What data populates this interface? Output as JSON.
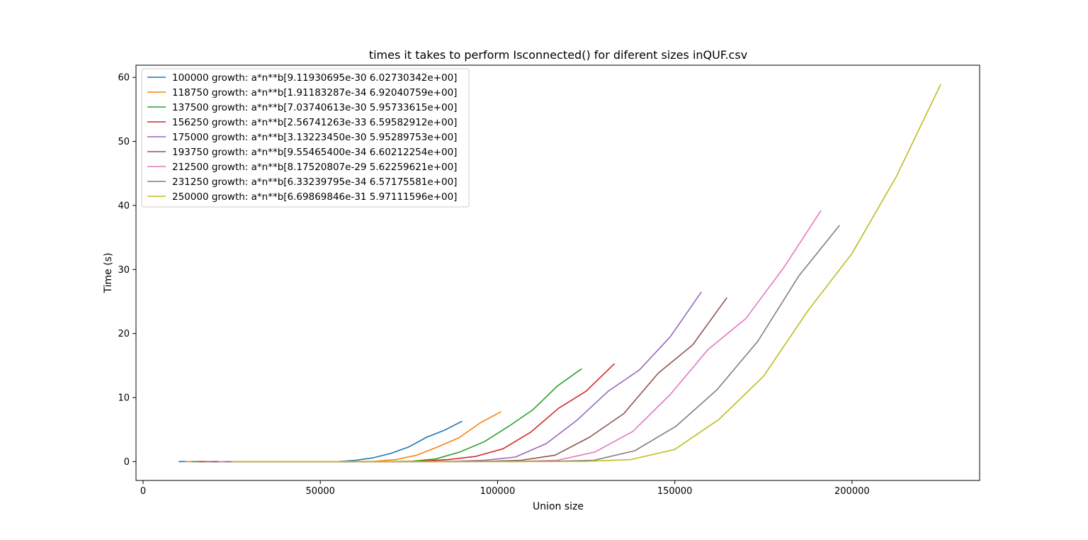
{
  "chart_data": {
    "type": "line",
    "title": "times it takes to perform Isconnected() for diferent sizes inQUF.csv",
    "xlabel": "Union size",
    "ylabel": "Time  (s)",
    "xlim": [
      -2000,
      236000
    ],
    "ylim": [
      -2.95,
      61.9
    ],
    "xticks": [
      0,
      50000,
      100000,
      150000,
      200000
    ],
    "yticks": [
      0,
      10,
      20,
      30,
      40,
      50,
      60
    ],
    "legend_position": "upper left",
    "grid": false,
    "series": [
      {
        "name": "100000 growth: a*n**b[9.11930695e-30 6.02730342e+00]",
        "color": "#1f77b4",
        "x": [
          10000,
          15000,
          20000,
          25000,
          30000,
          35000,
          40000,
          45000,
          50000,
          55000,
          60000,
          65000,
          70000,
          75000,
          80000,
          85000,
          90000
        ],
        "y": [
          0,
          0,
          0,
          0,
          0,
          0,
          0,
          0,
          0,
          0,
          0.2,
          0.6,
          1.3,
          2.3,
          3.8,
          4.9,
          6.3
        ]
      },
      {
        "name": "118750 growth: a*n**b[1.91183287e-34 6.92040759e+00]",
        "color": "#ff7f0e",
        "x": [
          11875,
          17812,
          23750,
          29687,
          35625,
          41562,
          47500,
          53437,
          59375,
          65312,
          71250,
          77187,
          83125,
          89062,
          95000,
          101000
        ],
        "y": [
          0,
          0,
          0,
          0,
          0,
          0,
          0,
          0,
          0,
          0.05,
          0.3,
          1.0,
          2.3,
          3.7,
          6.0,
          7.8
        ]
      },
      {
        "name": "137500 growth: a*n**b[7.03740613e-30 5.95733615e+00]",
        "color": "#2ca02c",
        "x": [
          13750,
          20625,
          27500,
          34375,
          41250,
          48125,
          55000,
          61875,
          68750,
          75625,
          82500,
          89375,
          96250,
          103125,
          110000,
          116875,
          123750
        ],
        "y": [
          0,
          0,
          0,
          0,
          0,
          0,
          0,
          0,
          0,
          0.05,
          0.4,
          1.5,
          3.1,
          5.5,
          8.1,
          11.8,
          14.5
        ]
      },
      {
        "name": "156250 growth: a*n**b[2.56741263e-33 6.59582912e+00]",
        "color": "#d62728",
        "x": [
          15625,
          23437,
          31250,
          39062,
          46875,
          54687,
          62500,
          70312,
          78125,
          85937,
          93750,
          101562,
          109375,
          117187,
          125000,
          133000
        ],
        "y": [
          0,
          0,
          0,
          0,
          0,
          0,
          0,
          0,
          0.05,
          0.3,
          0.8,
          2.0,
          4.6,
          8.3,
          11.0,
          15.3
        ]
      },
      {
        "name": "175000 growth: a*n**b[3.13223450e-30 5.95289753e+00]",
        "color": "#9467bd",
        "x": [
          17500,
          26250,
          35000,
          43750,
          52500,
          61250,
          70000,
          78750,
          87500,
          96250,
          105000,
          113750,
          122500,
          131250,
          140000,
          148750,
          157500
        ],
        "y": [
          0,
          0,
          0,
          0,
          0,
          0,
          0,
          0,
          0.05,
          0.2,
          0.7,
          2.8,
          6.5,
          11.0,
          14.3,
          19.5,
          26.5
        ]
      },
      {
        "name": "193750 growth: a*n**b[9.55465400e-34 6.60212254e+00]",
        "color": "#8c564b",
        "x": [
          19375,
          29062,
          38750,
          48437,
          58125,
          67812,
          77500,
          87187,
          96875,
          106562,
          116250,
          125937,
          135625,
          145312,
          155000,
          164700
        ],
        "y": [
          0,
          0,
          0,
          0,
          0,
          0,
          0,
          0,
          0.05,
          0.2,
          1.0,
          3.8,
          7.5,
          13.8,
          18.2,
          25.6
        ]
      },
      {
        "name": "212500 growth: a*n**b[8.17520807e-29 5.62259621e+00]",
        "color": "#e377c2",
        "x": [
          21250,
          31875,
          42500,
          53125,
          63750,
          74375,
          85000,
          95625,
          106250,
          116875,
          127500,
          138125,
          148750,
          159375,
          170000,
          180625,
          191250
        ],
        "y": [
          0,
          0,
          0,
          0,
          0,
          0,
          0,
          0,
          0.05,
          0.2,
          1.5,
          4.7,
          10.5,
          17.5,
          22.3,
          30.2,
          39.2
        ]
      },
      {
        "name": "231250 growth: a*n**b[6.33239795e-34 6.57175581e+00]",
        "color": "#7f7f7f",
        "x": [
          23125,
          34687,
          46250,
          57812,
          69375,
          80937,
          92500,
          104062,
          115625,
          127187,
          138750,
          150312,
          161875,
          173437,
          185000,
          196500
        ],
        "y": [
          0,
          0,
          0,
          0,
          0,
          0,
          0,
          0,
          0.05,
          0.2,
          1.7,
          5.5,
          11.2,
          18.8,
          29.0,
          36.9
        ]
      },
      {
        "name": "250000 growth: a*n**b[6.69869846e-31 5.97111596e+00]",
        "color": "#bcbd22",
        "x": [
          25000,
          37500,
          50000,
          62500,
          75000,
          87500,
          100000,
          112500,
          125000,
          137500,
          150000,
          162500,
          175000,
          187500,
          200000,
          212500,
          225000
        ],
        "y": [
          0,
          0,
          0,
          0,
          0,
          0,
          0,
          0,
          0.05,
          0.3,
          1.9,
          6.6,
          13.3,
          23.5,
          32.5,
          44.5,
          58.9
        ]
      }
    ]
  }
}
